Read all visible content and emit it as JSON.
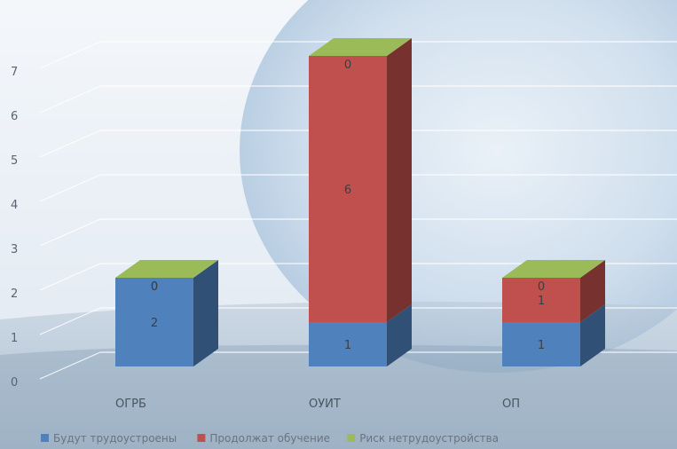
{
  "chart_data": {
    "type": "bar",
    "stacked": true,
    "three_d": true,
    "categories": [
      "ОГРБ",
      "ОУИТ",
      "ОП"
    ],
    "series": [
      {
        "name": "Будут трудоустроены",
        "values": [
          2,
          1,
          1
        ],
        "color": "#4f81bd"
      },
      {
        "name": "Продолжат обучение",
        "values": [
          0,
          6,
          1
        ],
        "color": "#c0504d"
      },
      {
        "name": "Риск нетрудоустройства",
        "values": [
          0,
          0,
          0
        ],
        "color": "#9bbb59"
      }
    ],
    "y_ticks": [
      "0",
      "1",
      "2",
      "3",
      "4",
      "5",
      "6",
      "7"
    ],
    "ylim": [
      0,
      7
    ],
    "grid": true,
    "legend_position": "bottom"
  }
}
